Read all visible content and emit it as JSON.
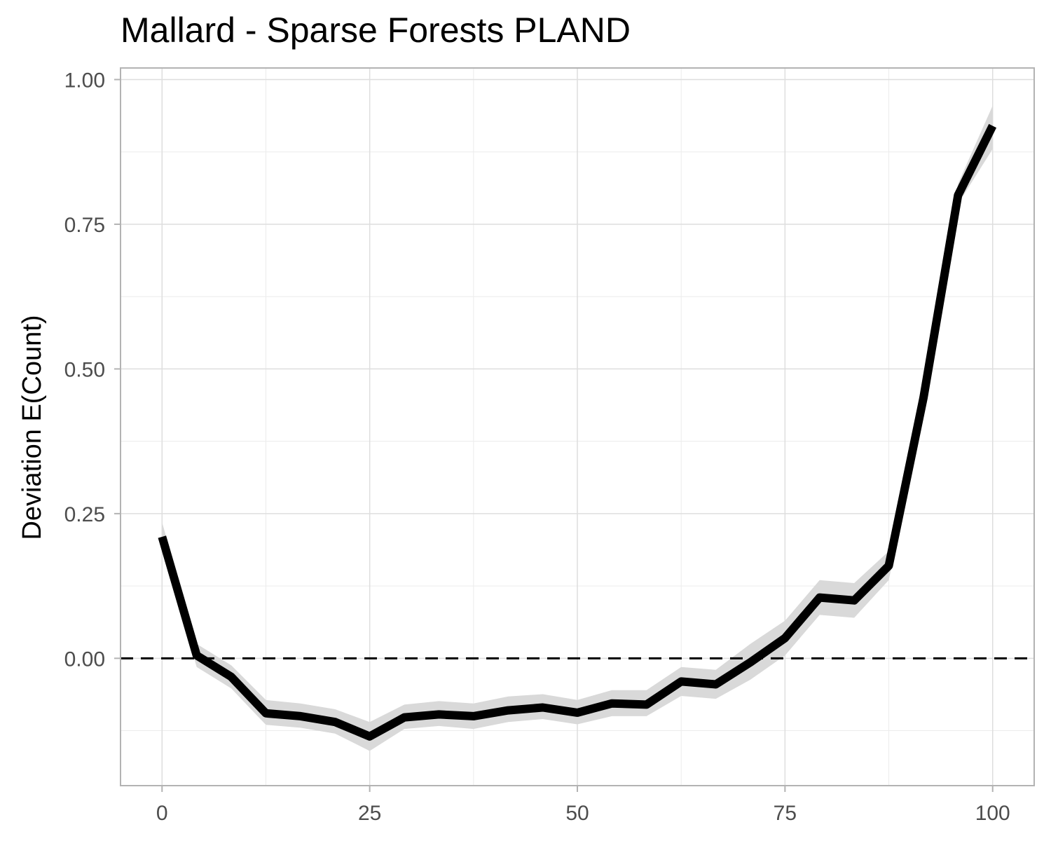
{
  "chart_data": {
    "type": "line",
    "title": "Mallard - Sparse Forests PLAND",
    "xlabel": "",
    "ylabel": "Deviation E(Count)",
    "xlim": [
      -5,
      105
    ],
    "ylim": [
      -0.22,
      1.02
    ],
    "x_ticks": [
      0,
      25,
      50,
      75,
      100
    ],
    "x_tick_labels": [
      "0",
      "25",
      "50",
      "75",
      "100"
    ],
    "y_ticks": [
      0,
      0.25,
      0.5,
      0.75,
      1.0
    ],
    "y_tick_labels": [
      "0.00",
      "0.25",
      "0.50",
      "0.75",
      "1.00"
    ],
    "grid": true,
    "reference_line": {
      "y": 0,
      "style": "dashed"
    },
    "series": [
      {
        "x": [
          0,
          4.17,
          8.33,
          12.5,
          16.67,
          20.83,
          25,
          29.17,
          33.33,
          37.5,
          41.67,
          45.83,
          50,
          54.17,
          58.33,
          62.5,
          66.67,
          70.83,
          75,
          79.17,
          83.33,
          87.5,
          91.67,
          95.83,
          100
        ],
        "y": [
          0.21,
          0.005,
          -0.032,
          -0.095,
          -0.1,
          -0.11,
          -0.135,
          -0.102,
          -0.097,
          -0.1,
          -0.09,
          -0.085,
          -0.094,
          -0.078,
          -0.08,
          -0.04,
          -0.045,
          -0.007,
          0.035,
          0.105,
          0.1,
          0.16,
          0.45,
          0.8,
          0.92
        ],
        "ci_lower": [
          0.19,
          -0.015,
          -0.052,
          -0.115,
          -0.12,
          -0.13,
          -0.16,
          -0.122,
          -0.117,
          -0.122,
          -0.11,
          -0.105,
          -0.114,
          -0.1,
          -0.1,
          -0.065,
          -0.07,
          -0.037,
          0.005,
          0.075,
          0.07,
          0.135,
          0.425,
          0.785,
          0.88
        ],
        "ci_upper": [
          0.235,
          0.025,
          -0.012,
          -0.072,
          -0.078,
          -0.088,
          -0.11,
          -0.08,
          -0.074,
          -0.078,
          -0.066,
          -0.062,
          -0.072,
          -0.055,
          -0.055,
          -0.015,
          -0.02,
          0.025,
          0.065,
          0.135,
          0.13,
          0.185,
          0.475,
          0.82,
          0.955
        ]
      }
    ],
    "colors": {
      "line": "#000000",
      "ribbon": "#d9d9d9",
      "grid_major": "#dedede",
      "grid_minor": "#ececec",
      "panel_border": "#b3b3b3",
      "tick_text": "#4d4d4d"
    }
  }
}
